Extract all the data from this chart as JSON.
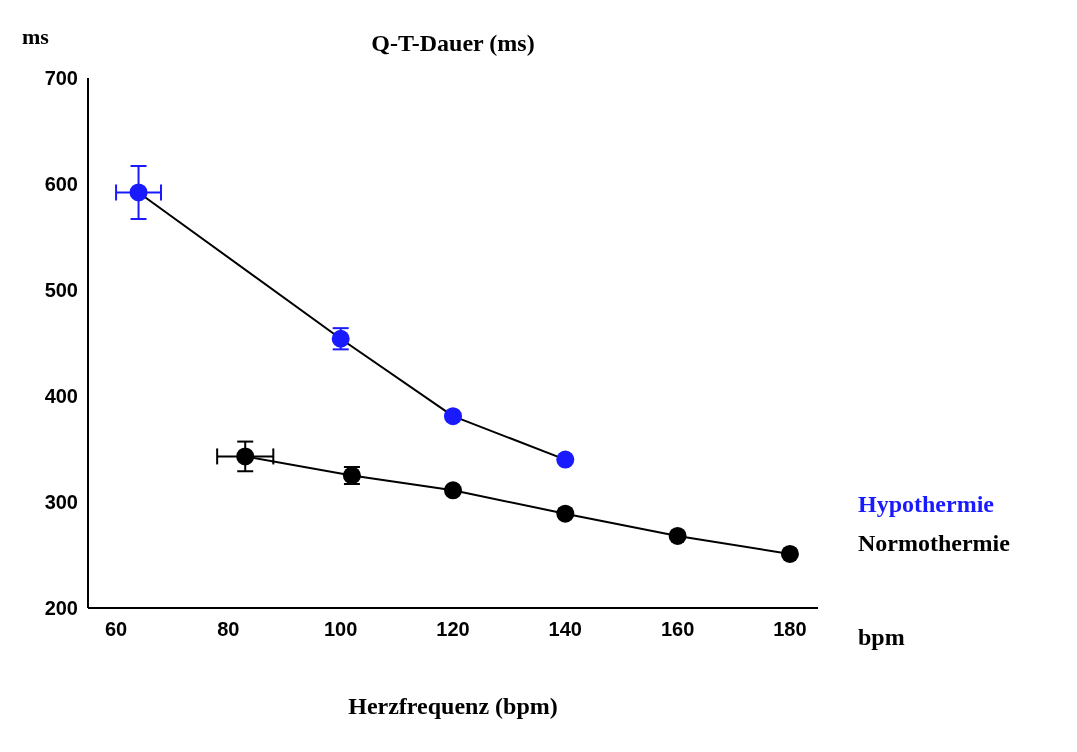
{
  "chart_data": {
    "type": "line",
    "title": "Q-T-Dauer (ms)",
    "xlabel": "Herzfrequenz (bpm)",
    "ylabel": "ms",
    "annotations": [
      "bpm"
    ],
    "xlim": [
      55,
      185
    ],
    "xticks": [
      60,
      80,
      100,
      120,
      140,
      160,
      180
    ],
    "ylim": [
      200,
      700
    ],
    "yticks": [
      200,
      300,
      400,
      500,
      600,
      700
    ],
    "grid": false,
    "legend": false,
    "marker": "circle",
    "line_style": "solid",
    "series": [
      {
        "name": "Hypothermie",
        "color": "#1a1aff",
        "x": [
          64,
          100,
          120,
          140
        ],
        "values": [
          592,
          454,
          381,
          340
        ],
        "errors": [
          25,
          10,
          null,
          null
        ],
        "xerrors": [
          4,
          null,
          null,
          null
        ]
      },
      {
        "name": "Normothermie",
        "color": "#000000",
        "x": [
          83,
          102,
          120,
          140,
          160,
          180
        ],
        "values": [
          343,
          325,
          311,
          289,
          268,
          251
        ],
        "errors": [
          14,
          8,
          null,
          null,
          null,
          null
        ],
        "xerrors": [
          5,
          null,
          null,
          null,
          null,
          null
        ]
      }
    ]
  }
}
